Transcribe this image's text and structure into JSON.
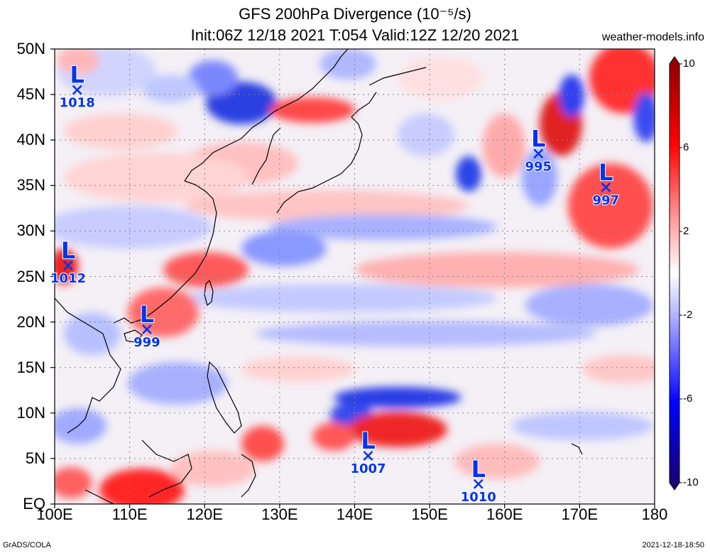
{
  "header": {
    "title": "GFS 200hPa Divergence (10⁻⁵/s)",
    "subtitle": "Init:06Z 12/18 2021 T:054 Valid:12Z 12/20 2021",
    "site": "weather-models.info"
  },
  "axes": {
    "lat_labels": [
      "50N",
      "45N",
      "40N",
      "35N",
      "30N",
      "25N",
      "20N",
      "15N",
      "10N",
      "5N",
      "EQ"
    ],
    "lat_values": [
      50,
      45,
      40,
      35,
      30,
      25,
      20,
      15,
      10,
      5,
      0
    ],
    "lon_labels": [
      "100E",
      "110E",
      "120E",
      "130E",
      "140E",
      "150E",
      "160E",
      "170E",
      "180"
    ],
    "lon_values": [
      100,
      110,
      120,
      130,
      140,
      150,
      160,
      170,
      180
    ],
    "lon_range": [
      100,
      180
    ],
    "lat_range": [
      0,
      50
    ]
  },
  "colorbar": {
    "labels": [
      "10",
      "6",
      "2",
      "-2",
      "-6",
      "-10"
    ],
    "values": [
      10,
      6,
      2,
      -2,
      -6,
      -10
    ],
    "colors": [
      "#8b0000",
      "#ff0000",
      "#ffb0b0",
      "#ffffff",
      "#b0b0ff",
      "#0000ff",
      "#1a0066"
    ]
  },
  "lows": [
    {
      "label": "L",
      "pressure": "1018",
      "lon": 103,
      "lat": 45.5
    },
    {
      "label": "L",
      "pressure": "995",
      "lon": 164.5,
      "lat": 38.5
    },
    {
      "label": "L",
      "pressure": "997",
      "lon": 173.5,
      "lat": 34.8
    },
    {
      "label": "L",
      "pressure": "1012",
      "lon": 101.8,
      "lat": 26.2
    },
    {
      "label": "L",
      "pressure": "999",
      "lon": 112.3,
      "lat": 19.2
    },
    {
      "label": "L",
      "pressure": "1007",
      "lon": 141.8,
      "lat": 5.3
    },
    {
      "label": "L",
      "pressure": "1010",
      "lon": 156.5,
      "lat": 2.2
    }
  ],
  "footer": {
    "left": "GrADS/COLA",
    "right": "2021-12-18-18:50"
  },
  "colors": {
    "low_marker": "#0033ee",
    "grid": "#888888"
  }
}
